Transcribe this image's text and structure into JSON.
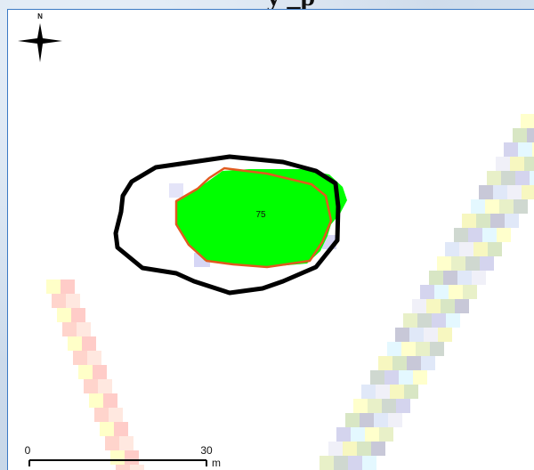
{
  "title": "y  _p",
  "north_arrow": {
    "label": "N"
  },
  "parcel": {
    "label": "75"
  },
  "scale_bar": {
    "start_label": "0",
    "end_label": "30",
    "unit": "m"
  },
  "colors": {
    "boundary_outline": "#000000",
    "parcel_outline": "#e05a1e",
    "parcel_fill": "#00ff00",
    "frame_border": "#3b79c4"
  }
}
